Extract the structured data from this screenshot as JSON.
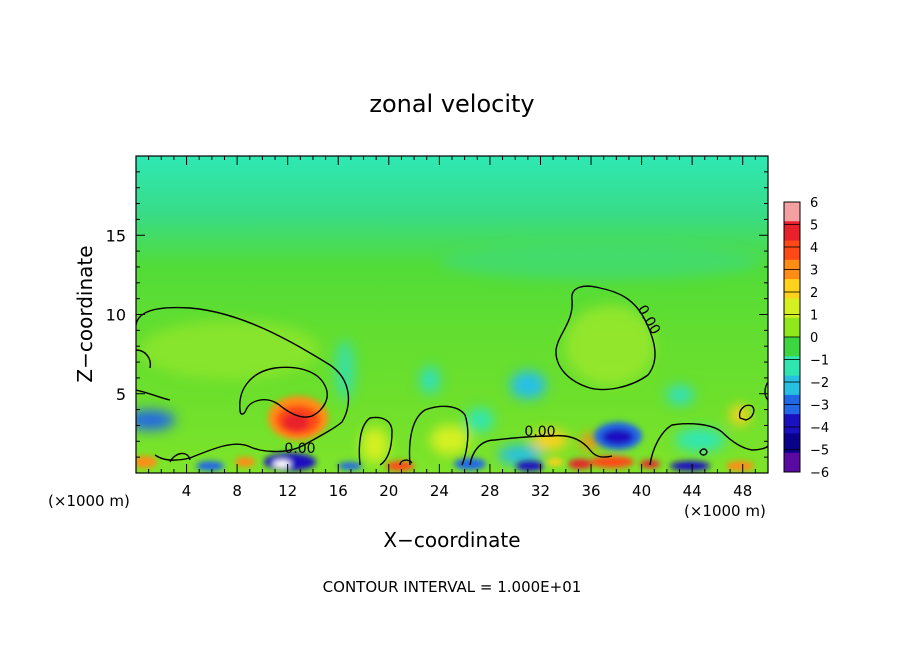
{
  "chart_data": {
    "type": "heatmap",
    "title": "zonal velocity",
    "xlabel": "X−coordinate",
    "ylabel": "Z−coordinate",
    "x_units": "(×1000 m)",
    "x_units_right": "(×1000 m)",
    "xlim": [
      0,
      50
    ],
    "ylim": [
      0,
      20
    ],
    "x_ticks": [
      4,
      8,
      12,
      16,
      20,
      24,
      28,
      32,
      36,
      40,
      44,
      48
    ],
    "y_ticks": [
      5,
      10,
      15
    ],
    "colorbar": {
      "levels": [
        6,
        5,
        4,
        3,
        2,
        1,
        0,
        -1,
        -2,
        -3,
        -4,
        -5,
        -6
      ],
      "labels": [
        "6",
        "5",
        "4",
        "3",
        "2",
        "1",
        "0",
        "−1",
        "−2",
        "−3",
        "−4",
        "−5",
        "−6"
      ],
      "colors": [
        "#f4a0a0",
        "#e8202a",
        "#ff4a18",
        "#ff8c14",
        "#ffd21c",
        "#d4f020",
        "#8ee81a",
        "#3cd640",
        "#30e6b0",
        "#28c0e0",
        "#2268e6",
        "#1a10c0",
        "#0a008a",
        "#5a0aa0"
      ]
    },
    "zero_contour_labels": [
      "0.00",
      "0.00",
      "0.00"
    ],
    "features": [
      {
        "x": 12.5,
        "z": 3.5,
        "value": 4,
        "desc": "strong positive core"
      },
      {
        "x": 38,
        "z": 2.4,
        "value": -4.5,
        "desc": "strong negative core"
      },
      {
        "x": 32,
        "z": 5.5,
        "value": -2.5,
        "desc": "negative region"
      },
      {
        "x": 12,
        "z": 0.7,
        "value": -5,
        "desc": "negative near ground"
      }
    ],
    "footer": "CONTOUR INTERVAL = 1.000E+01"
  }
}
